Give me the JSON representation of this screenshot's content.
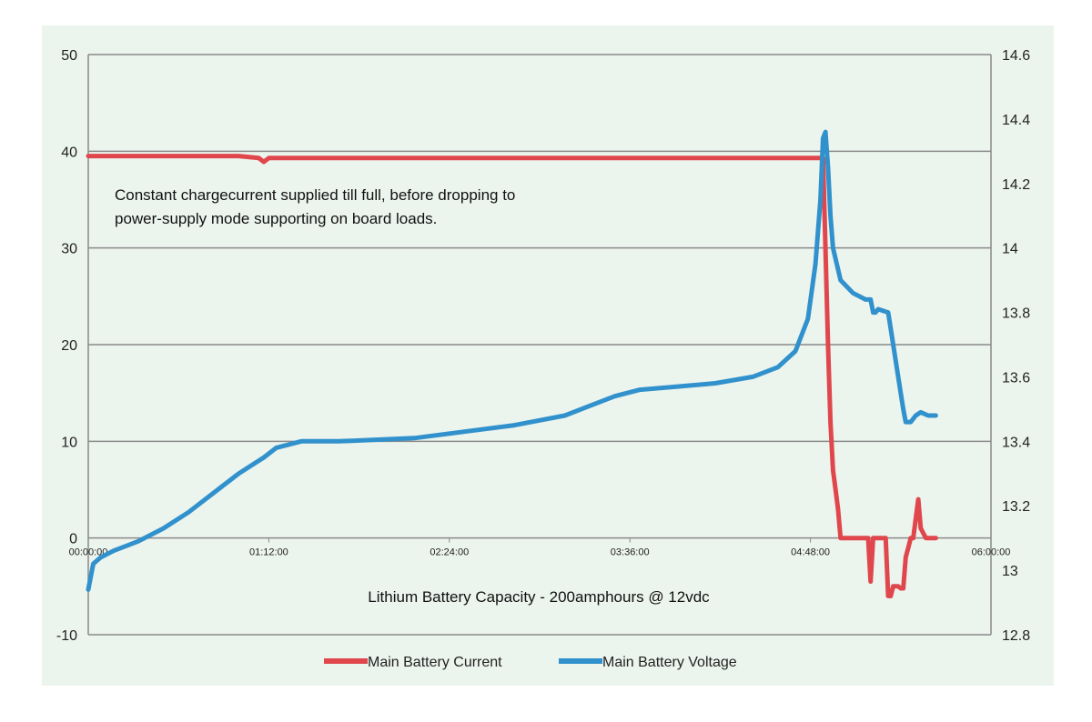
{
  "chart_data": {
    "type": "line",
    "annotation": [
      "Constant chargecurrent supplied till full, before dropping to",
      "power-supply mode supporting on board loads."
    ],
    "xlabel": "Lithium Battery Capacity - 200amphours @ 12vdc",
    "x_ticks": [
      "00:00:00",
      "01:12:00",
      "02:24:00",
      "03:36:00",
      "04:48:00",
      "06:00:00"
    ],
    "x_unit": "minutes",
    "xlim": [
      0,
      360
    ],
    "y_left": {
      "ticks": [
        "50",
        "40",
        "30",
        "20",
        "10",
        "0",
        "-10"
      ],
      "ylim": [
        -10,
        50
      ]
    },
    "y_right": {
      "ticks": [
        "14.6",
        "14.4",
        "14.2",
        "14",
        "13.8",
        "13.6",
        "13.4",
        "13.2",
        "13",
        "12.8"
      ],
      "ylim": [
        12.8,
        14.6
      ]
    },
    "grid": true,
    "legend_position": "bottom",
    "series": [
      {
        "name": "Main Battery Current",
        "axis": "left",
        "color": "#e0474c",
        "points": [
          [
            0,
            39.5
          ],
          [
            60,
            39.5
          ],
          [
            68,
            39.3
          ],
          [
            70,
            38.9
          ],
          [
            72,
            39.3
          ],
          [
            100,
            39.3
          ],
          [
            200,
            39.3
          ],
          [
            290,
            39.3
          ],
          [
            293,
            39.3
          ],
          [
            294,
            30
          ],
          [
            295,
            20
          ],
          [
            296,
            12
          ],
          [
            297,
            7
          ],
          [
            298,
            5
          ],
          [
            299,
            3
          ],
          [
            300,
            0
          ],
          [
            311,
            0
          ],
          [
            312,
            -4.5
          ],
          [
            313,
            0
          ],
          [
            318,
            0
          ],
          [
            319,
            -6
          ],
          [
            320,
            -6
          ],
          [
            321,
            -5
          ],
          [
            323,
            -5
          ],
          [
            324,
            -5.2
          ],
          [
            325,
            -5.2
          ],
          [
            326,
            -2
          ],
          [
            327,
            -1
          ],
          [
            328,
            0
          ],
          [
            329,
            0
          ],
          [
            330,
            2
          ],
          [
            331,
            4
          ],
          [
            332,
            1
          ],
          [
            334,
            0
          ],
          [
            338,
            0
          ]
        ]
      },
      {
        "name": "Main Battery Voltage",
        "axis": "right",
        "color": "#3191cc",
        "points": [
          [
            0,
            12.94
          ],
          [
            2,
            13.02
          ],
          [
            5,
            13.04
          ],
          [
            10,
            13.06
          ],
          [
            20,
            13.09
          ],
          [
            30,
            13.13
          ],
          [
            40,
            13.18
          ],
          [
            50,
            13.24
          ],
          [
            60,
            13.3
          ],
          [
            70,
            13.35
          ],
          [
            75,
            13.38
          ],
          [
            85,
            13.4
          ],
          [
            100,
            13.4
          ],
          [
            130,
            13.41
          ],
          [
            150,
            13.43
          ],
          [
            170,
            13.45
          ],
          [
            190,
            13.48
          ],
          [
            200,
            13.51
          ],
          [
            210,
            13.54
          ],
          [
            220,
            13.56
          ],
          [
            235,
            13.57
          ],
          [
            250,
            13.58
          ],
          [
            265,
            13.6
          ],
          [
            275,
            13.63
          ],
          [
            282,
            13.68
          ],
          [
            287,
            13.78
          ],
          [
            290,
            13.95
          ],
          [
            292,
            14.15
          ],
          [
            293,
            14.34
          ],
          [
            294,
            14.36
          ],
          [
            295,
            14.25
          ],
          [
            296,
            14.1
          ],
          [
            297,
            14.0
          ],
          [
            300,
            13.9
          ],
          [
            305,
            13.86
          ],
          [
            310,
            13.84
          ],
          [
            312,
            13.84
          ],
          [
            313,
            13.8
          ],
          [
            314,
            13.8
          ],
          [
            315,
            13.81
          ],
          [
            319,
            13.8
          ],
          [
            320,
            13.75
          ],
          [
            322,
            13.65
          ],
          [
            324,
            13.55
          ],
          [
            325,
            13.5
          ],
          [
            326,
            13.46
          ],
          [
            328,
            13.46
          ],
          [
            330,
            13.48
          ],
          [
            332,
            13.49
          ],
          [
            335,
            13.48
          ],
          [
            338,
            13.48
          ]
        ]
      }
    ]
  }
}
